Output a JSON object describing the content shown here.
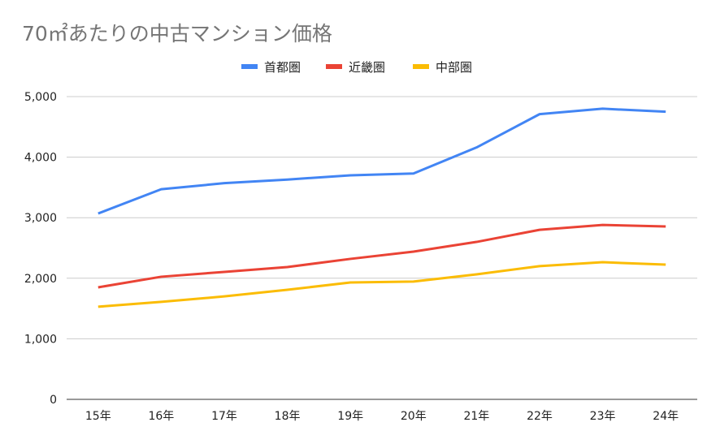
{
  "chart_data": {
    "type": "line",
    "title": "70㎡あたりの中古マンション価格",
    "xlabel": "",
    "ylabel": "",
    "categories": [
      "15年",
      "16年",
      "17年",
      "18年",
      "19年",
      "20年",
      "21年",
      "22年",
      "23年",
      "24年"
    ],
    "ylim": [
      0,
      5000
    ],
    "yticks": [
      "0",
      "1,000",
      "2,000",
      "3,000",
      "4,000",
      "5,000"
    ],
    "grid": true,
    "legend_position": "top",
    "series": [
      {
        "name": "首都圏",
        "color": "#4285f4",
        "values": [
          3070,
          3470,
          3570,
          3630,
          3700,
          3730,
          4160,
          4710,
          4800,
          4750
        ]
      },
      {
        "name": "近畿圏",
        "color": "#ea4335",
        "values": [
          1850,
          2025,
          2105,
          2185,
          2320,
          2440,
          2600,
          2800,
          2880,
          2855
        ]
      },
      {
        "name": "中部圏",
        "color": "#fbbc04",
        "values": [
          1530,
          1610,
          1700,
          1810,
          1930,
          1945,
          2065,
          2200,
          2265,
          2225
        ]
      }
    ]
  }
}
